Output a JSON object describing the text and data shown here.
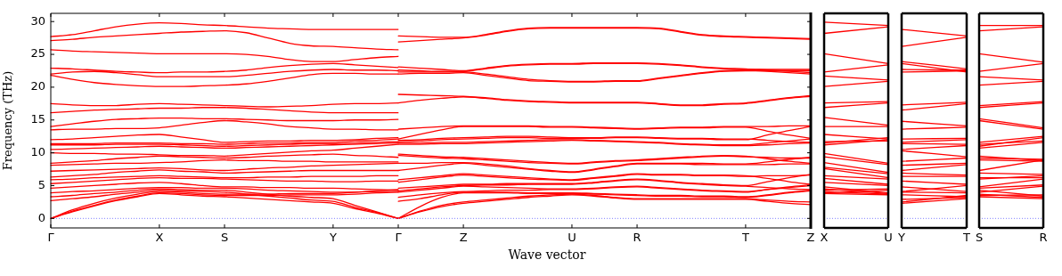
{
  "chart_data": [
    {
      "type": "line",
      "ylabel": "Frequency (THz)",
      "marker": "none",
      "line_style": "solid",
      "categories": [
        "Γ",
        null,
        null,
        null,
        null,
        "X",
        null,
        null,
        "S",
        null,
        null,
        null,
        null,
        "Y",
        null,
        null,
        "Γ"
      ],
      "ylim": [
        -1.45,
        31.25
      ],
      "yticks": [
        0,
        5,
        10,
        15,
        20,
        25,
        30
      ],
      "ref_lines": [
        {
          "axis": "y",
          "value": 0,
          "color": "#8080ff",
          "line_style": "dotted"
        }
      ],
      "series": [
        {
          "color": "#ff0000",
          "values": [
            0,
            1.0,
            1.9,
            2.7,
            3.3,
            3.8,
            3.6,
            3.4,
            3.3,
            3.1,
            2.9,
            2.7,
            2.5,
            2.3,
            1.5,
            0.8,
            0
          ]
        },
        {
          "color": "#ff0000",
          "values": [
            0,
            1.1,
            2.0,
            2.8,
            3.4,
            3.9,
            3.8,
            3.6,
            3.5,
            3.5,
            3.5,
            3.6,
            3.6,
            3.6,
            3.7,
            3.9,
            4.0
          ]
        },
        {
          "color": "#ff0000",
          "values": [
            0,
            1.3,
            2.3,
            3.1,
            3.7,
            4.1,
            4.0,
            3.8,
            3.7,
            3.7,
            3.7,
            3.8,
            3.8,
            3.8,
            4.0,
            4.2,
            4.4
          ]
        },
        {
          "color": "#ff0000",
          "values": [
            2.7,
            3.0,
            3.3,
            3.7,
            4.0,
            4.3,
            4.2,
            4.1,
            4.0,
            3.7,
            3.4,
            3.1,
            2.8,
            2.6,
            1.7,
            0.9,
            0
          ]
        },
        {
          "color": "#ff0000",
          "values": [
            3.3,
            3.5,
            3.8,
            4.0,
            4.3,
            4.5,
            4.4,
            4.3,
            4.3,
            4.0,
            3.7,
            3.4,
            3.2,
            3.0,
            2.0,
            1.0,
            0
          ]
        },
        {
          "color": "#ff0000",
          "values": [
            3.9,
            4.1,
            4.2,
            4.4,
            4.6,
            4.7,
            4.7,
            4.6,
            4.6,
            4.5,
            4.3,
            4.2,
            4.1,
            4.0,
            4.0,
            4.1,
            4.1
          ]
        },
        {
          "color": "#ff0000",
          "values": [
            4.6,
            4.8,
            5.0,
            5.2,
            5.4,
            5.5,
            5.3,
            5.0,
            4.8,
            4.8,
            4.7,
            4.7,
            4.6,
            4.6,
            4.5,
            4.4,
            4.3
          ]
        },
        {
          "color": "#ff0000",
          "values": [
            5.3,
            5.5,
            5.7,
            5.9,
            6.1,
            6.2,
            6.1,
            6.1,
            6.0,
            5.9,
            5.8,
            5.7,
            5.7,
            5.6,
            5.6,
            5.7,
            5.7
          ]
        },
        {
          "color": "#ff0000",
          "values": [
            5.9,
            6.0,
            6.2,
            6.3,
            6.4,
            6.5,
            6.4,
            6.3,
            6.2,
            6.2,
            6.3,
            6.3,
            6.4,
            6.4,
            6.4,
            6.5,
            6.5
          ]
        },
        {
          "color": "#ff0000",
          "values": [
            6.3,
            6.5,
            6.7,
            7.0,
            7.2,
            7.4,
            7.2,
            7.1,
            6.9,
            7.0,
            7.1,
            7.2,
            7.3,
            7.3,
            7.3,
            7.3,
            7.3
          ]
        },
        {
          "color": "#ff0000",
          "values": [
            7.2,
            7.3,
            7.4,
            7.5,
            7.6,
            7.7,
            7.6,
            7.4,
            7.3,
            7.5,
            7.7,
            7.8,
            8.0,
            8.1,
            8.2,
            8.3,
            8.4
          ]
        },
        {
          "color": "#ff0000",
          "values": [
            8.1,
            8.2,
            8.3,
            8.4,
            8.4,
            8.5,
            8.6,
            8.8,
            8.9,
            8.8,
            8.8,
            8.7,
            8.7,
            8.6,
            8.6,
            8.6,
            8.6
          ]
        },
        {
          "color": "#ff0000",
          "values": [
            8.4,
            8.6,
            8.8,
            9.1,
            9.3,
            9.5,
            9.4,
            9.3,
            9.2,
            9.3,
            9.5,
            9.6,
            9.7,
            9.8,
            9.6,
            9.5,
            9.3
          ]
        },
        {
          "color": "#ff0000",
          "values": [
            10.0,
            9.9,
            9.9,
            9.8,
            9.8,
            9.7,
            9.6,
            9.6,
            9.5,
            9.7,
            9.9,
            10.1,
            10.3,
            10.4,
            10.7,
            11.0,
            11.3
          ]
        },
        {
          "color": "#ff0000",
          "values": [
            10.5,
            10.6,
            10.7,
            10.8,
            10.9,
            11.0,
            10.9,
            10.8,
            10.7,
            10.8,
            10.9,
            11.0,
            11.1,
            11.2,
            11.3,
            11.4,
            11.5
          ]
        },
        {
          "color": "#ff0000",
          "values": [
            11.2,
            11.2,
            11.2,
            11.3,
            11.3,
            11.3,
            11.2,
            11.1,
            11.0,
            11.1,
            11.2,
            11.3,
            11.4,
            11.4,
            11.5,
            11.6,
            11.7
          ]
        },
        {
          "color": "#ff0000",
          "values": [
            11.4,
            11.4,
            11.4,
            11.5,
            11.5,
            11.5,
            11.4,
            11.4,
            11.3,
            11.4,
            11.5,
            11.5,
            11.6,
            11.6,
            11.8,
            11.9,
            12.1
          ]
        },
        {
          "color": "#ff0000",
          "values": [
            12.0,
            12.1,
            12.3,
            12.5,
            12.7,
            12.8,
            12.4,
            12.0,
            11.6,
            11.7,
            11.8,
            11.8,
            11.9,
            11.9,
            12.0,
            12.2,
            12.3
          ]
        },
        {
          "color": "#ff0000",
          "values": [
            13.5,
            13.6,
            13.6,
            13.7,
            13.7,
            13.8,
            14.2,
            14.6,
            14.9,
            14.7,
            14.4,
            14.0,
            13.8,
            13.6,
            13.6,
            13.5,
            13.5
          ]
        },
        {
          "color": "#ff0000",
          "values": [
            14.0,
            14.4,
            14.8,
            15.1,
            15.2,
            15.3,
            15.3,
            15.2,
            15.2,
            15.1,
            15.0,
            14.9,
            14.9,
            14.9,
            15.0,
            15.0,
            15.1
          ]
        },
        {
          "color": "#ff0000",
          "values": [
            16.1,
            16.3,
            16.5,
            16.6,
            16.7,
            16.8,
            16.8,
            16.9,
            16.9,
            16.8,
            16.6,
            16.4,
            16.2,
            16.1,
            16.1,
            16.1,
            16.1
          ]
        },
        {
          "color": "#ff0000",
          "values": [
            17.5,
            17.3,
            17.2,
            17.2,
            17.4,
            17.5,
            17.4,
            17.3,
            17.2,
            17.1,
            17.0,
            17.1,
            17.2,
            17.4,
            17.5,
            17.5,
            17.6
          ]
        },
        {
          "color": "#ff0000",
          "values": [
            21.8,
            21.2,
            20.7,
            20.4,
            20.2,
            20.1,
            20.1,
            20.2,
            20.3,
            20.5,
            20.9,
            21.4,
            21.9,
            22.1,
            22.1,
            22.0,
            22.0
          ]
        },
        {
          "color": "#ff0000",
          "values": [
            22.0,
            22.3,
            22.4,
            22.2,
            21.9,
            21.6,
            21.6,
            21.6,
            21.6,
            21.8,
            22.1,
            22.4,
            22.6,
            22.7,
            22.6,
            22.6,
            22.5
          ]
        },
        {
          "color": "#ff0000",
          "values": [
            22.9,
            22.8,
            22.6,
            22.4,
            22.3,
            22.2,
            22.3,
            22.3,
            22.4,
            22.6,
            23.0,
            23.3,
            23.5,
            23.6,
            23.4,
            23.2,
            23.0
          ]
        },
        {
          "color": "#ff0000",
          "values": [
            25.7,
            25.5,
            25.4,
            25.3,
            25.2,
            25.1,
            25.1,
            25.1,
            25.1,
            25.0,
            24.7,
            24.2,
            23.9,
            23.9,
            24.2,
            24.5,
            24.7
          ]
        },
        {
          "color": "#ff0000",
          "values": [
            27.1,
            27.3,
            27.6,
            27.8,
            28.0,
            28.2,
            28.4,
            28.5,
            28.6,
            28.3,
            27.5,
            26.7,
            26.3,
            26.2,
            26.0,
            25.8,
            25.7
          ]
        },
        {
          "color": "#ff0000",
          "values": [
            27.7,
            28.0,
            28.6,
            29.2,
            29.6,
            29.8,
            29.7,
            29.5,
            29.4,
            29.2,
            29.0,
            28.9,
            28.8,
            28.8,
            28.8,
            28.8,
            28.8
          ]
        }
      ]
    },
    {
      "type": "line",
      "xlabel": "Wave vector",
      "marker": "none",
      "line_style": "solid",
      "tick_labels": "x",
      "categories": [
        null,
        null,
        null,
        "Z",
        null,
        null,
        null,
        null,
        "U",
        null,
        null,
        "R",
        null,
        null,
        null,
        null,
        "T",
        null,
        null,
        "Z"
      ],
      "ylim": [
        -1.45,
        31.25
      ],
      "yticks": [
        {
          "value": 0,
          "label": null
        },
        {
          "value": 5,
          "label": null
        },
        {
          "value": 10,
          "label": null
        },
        {
          "value": 15,
          "label": null
        },
        {
          "value": 20,
          "label": null
        },
        {
          "value": 25,
          "label": null
        },
        {
          "value": 30,
          "label": null
        }
      ],
      "ref_lines": [
        {
          "axis": "y",
          "value": 0,
          "color": "#8080ff",
          "line_style": "dotted"
        }
      ],
      "series": [
        {
          "color": "#ff0000",
          "values": [
            0,
            1.0,
            1.8,
            2.3,
            2.6,
            2.9,
            3.2,
            3.4,
            3.6,
            3.4,
            3.1,
            2.9,
            2.9,
            2.9,
            2.9,
            2.9,
            2.9,
            2.6,
            2.3,
            2.1
          ]
        },
        {
          "color": "#ff0000",
          "values": [
            0,
            1.1,
            2.0,
            2.5,
            2.8,
            3.1,
            3.4,
            3.6,
            3.7,
            3.5,
            3.2,
            3.0,
            3.0,
            3.0,
            3.0,
            3.0,
            3.0,
            2.8,
            2.6,
            2.5
          ]
        },
        {
          "color": "#ff0000",
          "values": [
            0,
            1.8,
            3.2,
            3.9,
            3.9,
            3.9,
            3.8,
            3.8,
            3.8,
            3.7,
            3.6,
            3.5,
            3.4,
            3.4,
            3.3,
            3.3,
            3.2,
            3.5,
            3.9,
            4.2
          ]
        },
        {
          "color": "#ff0000",
          "values": [
            2.6,
            3.0,
            3.6,
            4.0,
            4.0,
            4.0,
            3.9,
            3.9,
            3.9,
            3.8,
            3.7,
            3.6,
            3.5,
            3.5,
            3.4,
            3.4,
            3.3,
            3.6,
            4.0,
            4.3
          ]
        },
        {
          "color": "#ff0000",
          "values": [
            3.2,
            3.6,
            3.9,
            4.1,
            4.2,
            4.3,
            4.3,
            4.4,
            4.4,
            4.5,
            4.7,
            4.8,
            4.6,
            4.4,
            4.2,
            4.1,
            4.0,
            4.4,
            4.8,
            5.1
          ]
        },
        {
          "color": "#ff0000",
          "values": [
            4.0,
            4.3,
            4.6,
            4.9,
            4.8,
            4.7,
            4.6,
            4.5,
            4.5,
            4.6,
            4.8,
            4.9,
            4.7,
            4.5,
            4.3,
            4.2,
            4.1,
            4.4,
            4.7,
            5.0
          ]
        },
        {
          "color": "#ff0000",
          "values": [
            4.2,
            4.5,
            4.8,
            5.0,
            5.1,
            5.1,
            5.2,
            5.2,
            5.2,
            5.4,
            5.7,
            5.9,
            5.7,
            5.4,
            5.2,
            5.0,
            4.9,
            4.7,
            4.5,
            4.4
          ]
        },
        {
          "color": "#ff0000",
          "values": [
            4.6,
            4.8,
            5.0,
            5.2,
            5.2,
            5.3,
            5.3,
            5.3,
            5.3,
            5.5,
            5.8,
            6.0,
            5.8,
            5.5,
            5.3,
            5.1,
            5.0,
            5.6,
            6.2,
            6.7
          ]
        },
        {
          "color": "#ff0000",
          "values": [
            5.5,
            5.9,
            6.3,
            6.6,
            6.4,
            6.2,
            6.0,
            5.9,
            5.8,
            6.1,
            6.4,
            6.7,
            6.6,
            6.6,
            6.5,
            6.5,
            6.4,
            6.5,
            6.5,
            6.6
          ]
        },
        {
          "color": "#ff0000",
          "values": [
            5.9,
            6.2,
            6.5,
            6.8,
            6.6,
            6.4,
            6.2,
            6.0,
            5.9,
            6.2,
            6.5,
            6.8,
            6.7,
            6.7,
            6.6,
            6.6,
            6.5,
            6.1,
            5.6,
            5.2
          ]
        },
        {
          "color": "#ff0000",
          "values": [
            7.3,
            7.7,
            8.1,
            8.4,
            8.1,
            7.8,
            7.5,
            7.2,
            7.0,
            7.4,
            7.9,
            8.3,
            8.3,
            8.3,
            8.2,
            8.2,
            8.2,
            8.2,
            8.3,
            8.3
          ]
        },
        {
          "color": "#ff0000",
          "values": [
            8.4,
            8.4,
            8.5,
            8.5,
            8.3,
            8.0,
            7.6,
            7.3,
            7.1,
            7.5,
            8.0,
            8.4,
            8.4,
            8.4,
            8.4,
            8.3,
            8.3,
            8.6,
            9.0,
            9.3
          ]
        },
        {
          "color": "#ff0000",
          "values": [
            9.6,
            9.4,
            9.2,
            9.1,
            8.9,
            8.7,
            8.5,
            8.4,
            8.3,
            8.5,
            8.7,
            8.8,
            9.0,
            9.2,
            9.4,
            9.5,
            9.4,
            9.3,
            9.2,
            9.2
          ]
        },
        {
          "color": "#ff0000",
          "values": [
            9.8,
            9.6,
            9.4,
            9.3,
            9.1,
            8.9,
            8.7,
            8.5,
            8.4,
            8.6,
            8.8,
            8.9,
            9.1,
            9.3,
            9.5,
            9.6,
            9.5,
            9.1,
            8.7,
            8.4
          ]
        },
        {
          "color": "#ff0000",
          "values": [
            11.3,
            11.3,
            11.4,
            11.4,
            11.5,
            11.6,
            11.7,
            11.8,
            11.9,
            11.8,
            11.7,
            11.6,
            11.5,
            11.3,
            11.2,
            11.1,
            11.1,
            11.2,
            11.4,
            11.5
          ]
        },
        {
          "color": "#ff0000",
          "values": [
            11.5,
            11.5,
            11.6,
            11.6,
            11.7,
            11.8,
            11.9,
            12.0,
            12.0,
            11.9,
            11.8,
            11.7,
            11.6,
            11.4,
            11.3,
            11.2,
            11.2,
            11.5,
            11.8,
            12.1
          ]
        },
        {
          "color": "#ff0000",
          "values": [
            11.7,
            11.8,
            12.0,
            12.1,
            12.2,
            12.3,
            12.3,
            12.2,
            12.2,
            12.2,
            12.3,
            12.3,
            12.2,
            12.1,
            12.1,
            12.0,
            12.0,
            12.7,
            13.4,
            14.0
          ]
        },
        {
          "color": "#ff0000",
          "values": [
            11.9,
            12.0,
            12.2,
            12.3,
            12.4,
            12.5,
            12.5,
            12.4,
            12.3,
            12.3,
            12.4,
            12.4,
            12.3,
            12.2,
            12.2,
            12.1,
            12.1,
            11.9,
            11.7,
            11.6
          ]
        },
        {
          "color": "#ff0000",
          "values": [
            12.1,
            12.8,
            13.5,
            14.0,
            14.0,
            14.0,
            14.0,
            13.9,
            13.9,
            13.8,
            13.7,
            13.6,
            13.7,
            13.8,
            13.8,
            13.9,
            13.9,
            13.3,
            12.7,
            12.2
          ]
        },
        {
          "color": "#ff0000",
          "values": [
            13.6,
            13.8,
            14.0,
            14.1,
            14.1,
            14.1,
            14.1,
            14.0,
            14.0,
            13.9,
            13.8,
            13.7,
            13.8,
            13.9,
            13.9,
            14.0,
            14.0,
            14.0,
            14.1,
            14.1
          ]
        },
        {
          "color": "#ff0000",
          "values": [
            17.6,
            18.0,
            18.3,
            18.5,
            18.3,
            18.0,
            17.8,
            17.7,
            17.6,
            17.6,
            17.6,
            17.6,
            17.4,
            17.2,
            17.2,
            17.4,
            17.5,
            17.9,
            18.3,
            18.6
          ]
        },
        {
          "color": "#ff0000",
          "values": [
            18.9,
            18.8,
            18.7,
            18.6,
            18.4,
            18.1,
            17.9,
            17.8,
            17.7,
            17.7,
            17.7,
            17.7,
            17.5,
            17.3,
            17.3,
            17.5,
            17.6,
            18.0,
            18.4,
            18.7
          ]
        },
        {
          "color": "#ff0000",
          "values": [
            22.0,
            22.1,
            22.1,
            22.2,
            21.8,
            21.4,
            21.0,
            20.9,
            20.8,
            20.8,
            20.9,
            20.9,
            21.3,
            21.7,
            22.1,
            22.4,
            22.5,
            22.5,
            22.5,
            22.5
          ]
        },
        {
          "color": "#ff0000",
          "values": [
            22.3,
            22.3,
            22.3,
            22.3,
            22.0,
            21.6,
            21.2,
            21.0,
            20.9,
            20.9,
            21.0,
            21.0,
            21.4,
            21.8,
            22.2,
            22.5,
            22.6,
            22.4,
            22.2,
            22.0
          ]
        },
        {
          "color": "#ff0000",
          "values": [
            22.6,
            22.5,
            22.4,
            22.4,
            22.8,
            23.2,
            23.4,
            23.5,
            23.5,
            23.6,
            23.6,
            23.6,
            23.5,
            23.3,
            23.0,
            22.8,
            22.7,
            22.7,
            22.7,
            22.7
          ]
        },
        {
          "color": "#ff0000",
          "values": [
            23.1,
            22.9,
            22.7,
            22.5,
            22.9,
            23.3,
            23.5,
            23.6,
            23.6,
            23.7,
            23.7,
            23.7,
            23.6,
            23.4,
            23.1,
            22.9,
            22.8,
            22.6,
            22.4,
            22.2
          ]
        },
        {
          "color": "#ff0000",
          "values": [
            26.9,
            27.1,
            27.3,
            27.5,
            27.9,
            28.5,
            28.9,
            29.0,
            29.0,
            29.0,
            29.0,
            29.0,
            28.9,
            28.4,
            27.9,
            27.7,
            27.6,
            27.5,
            27.4,
            27.3
          ]
        },
        {
          "color": "#ff0000",
          "values": [
            27.8,
            27.7,
            27.6,
            27.6,
            28.0,
            28.6,
            29.0,
            29.1,
            29.1,
            29.1,
            29.1,
            29.1,
            29.0,
            28.5,
            28.0,
            27.8,
            27.7,
            27.6,
            27.5,
            27.4
          ]
        }
      ]
    },
    {
      "type": "line",
      "marker": "none",
      "line_style": "solid",
      "tick_labels": "x",
      "categories": [
        "X",
        "U"
      ],
      "ylim": [
        -1.45,
        31.25
      ],
      "ref_lines": [
        {
          "axis": "y",
          "value": 0,
          "color": "#8080ff",
          "line_style": "dotted"
        }
      ],
      "series": [
        {
          "color": "#ff0000",
          "values": [
            3.8,
            3.6
          ]
        },
        {
          "color": "#ff0000",
          "values": [
            3.9,
            4.3
          ]
        },
        {
          "color": "#ff0000",
          "values": [
            4.1,
            3.7
          ]
        },
        {
          "color": "#ff0000",
          "values": [
            4.3,
            4.5
          ]
        },
        {
          "color": "#ff0000",
          "values": [
            4.5,
            3.8
          ]
        },
        {
          "color": "#ff0000",
          "values": [
            4.8,
            3.9
          ]
        },
        {
          "color": "#ff0000",
          "values": [
            5.5,
            5.0
          ]
        },
        {
          "color": "#ff0000",
          "values": [
            6.1,
            5.2
          ]
        },
        {
          "color": "#ff0000",
          "values": [
            6.5,
            6.0
          ]
        },
        {
          "color": "#ff0000",
          "values": [
            7.6,
            6.2
          ]
        },
        {
          "color": "#ff0000",
          "values": [
            7.8,
            6.8
          ]
        },
        {
          "color": "#ff0000",
          "values": [
            8.5,
            7.0
          ]
        },
        {
          "color": "#ff0000",
          "values": [
            9.4,
            8.2
          ]
        },
        {
          "color": "#ff0000",
          "values": [
            9.9,
            8.4
          ]
        },
        {
          "color": "#ff0000",
          "values": [
            11.2,
            12.0
          ]
        },
        {
          "color": "#ff0000",
          "values": [
            11.5,
            12.3
          ]
        },
        {
          "color": "#ff0000",
          "values": [
            11.7,
            11.8
          ]
        },
        {
          "color": "#ff0000",
          "values": [
            12.8,
            12.1
          ]
        },
        {
          "color": "#ff0000",
          "values": [
            14.0,
            14.0
          ]
        },
        {
          "color": "#ff0000",
          "values": [
            15.4,
            14.2
          ]
        },
        {
          "color": "#ff0000",
          "values": [
            16.9,
            17.6
          ]
        },
        {
          "color": "#ff0000",
          "values": [
            17.6,
            17.8
          ]
        },
        {
          "color": "#ff0000",
          "values": [
            20.1,
            20.9
          ]
        },
        {
          "color": "#ff0000",
          "values": [
            21.7,
            21.1
          ]
        },
        {
          "color": "#ff0000",
          "values": [
            22.3,
            23.4
          ]
        },
        {
          "color": "#ff0000",
          "values": [
            25.1,
            23.6
          ]
        },
        {
          "color": "#ff0000",
          "values": [
            28.2,
            29.2
          ]
        },
        {
          "color": "#ff0000",
          "values": [
            29.9,
            29.4
          ]
        }
      ]
    },
    {
      "type": "line",
      "marker": "none",
      "line_style": "solid",
      "tick_labels": "x",
      "categories": [
        "Y",
        "T"
      ],
      "ylim": [
        -1.45,
        31.25
      ],
      "ref_lines": [
        {
          "axis": "y",
          "value": 0,
          "color": "#8080ff",
          "line_style": "dotted"
        }
      ],
      "series": [
        {
          "color": "#ff0000",
          "values": [
            2.3,
            3.0
          ]
        },
        {
          "color": "#ff0000",
          "values": [
            2.5,
            3.5
          ]
        },
        {
          "color": "#ff0000",
          "values": [
            2.9,
            3.2
          ]
        },
        {
          "color": "#ff0000",
          "values": [
            3.6,
            3.3
          ]
        },
        {
          "color": "#ff0000",
          "values": [
            4.0,
            3.9
          ]
        },
        {
          "color": "#ff0000",
          "values": [
            4.1,
            5.0
          ]
        },
        {
          "color": "#ff0000",
          "values": [
            4.8,
            4.1
          ]
        },
        {
          "color": "#ff0000",
          "values": [
            5.7,
            5.2
          ]
        },
        {
          "color": "#ff0000",
          "values": [
            6.4,
            6.4
          ]
        },
        {
          "color": "#ff0000",
          "values": [
            6.9,
            6.6
          ]
        },
        {
          "color": "#ff0000",
          "values": [
            7.3,
            8.2
          ]
        },
        {
          "color": "#ff0000",
          "values": [
            8.1,
            8.4
          ]
        },
        {
          "color": "#ff0000",
          "values": [
            8.7,
            9.2
          ]
        },
        {
          "color": "#ff0000",
          "values": [
            10.3,
            9.4
          ]
        },
        {
          "color": "#ff0000",
          "values": [
            10.5,
            11.1
          ]
        },
        {
          "color": "#ff0000",
          "values": [
            11.4,
            11.3
          ]
        },
        {
          "color": "#ff0000",
          "values": [
            11.6,
            12.0
          ]
        },
        {
          "color": "#ff0000",
          "values": [
            12.1,
            12.2
          ]
        },
        {
          "color": "#ff0000",
          "values": [
            13.6,
            13.9
          ]
        },
        {
          "color": "#ff0000",
          "values": [
            14.8,
            14.1
          ]
        },
        {
          "color": "#ff0000",
          "values": [
            16.5,
            17.5
          ]
        },
        {
          "color": "#ff0000",
          "values": [
            17.3,
            17.7
          ]
        },
        {
          "color": "#ff0000",
          "values": [
            22.3,
            22.5
          ]
        },
        {
          "color": "#ff0000",
          "values": [
            22.7,
            22.6
          ]
        },
        {
          "color": "#ff0000",
          "values": [
            23.6,
            22.3
          ]
        },
        {
          "color": "#ff0000",
          "values": [
            23.9,
            22.8
          ]
        },
        {
          "color": "#ff0000",
          "values": [
            26.2,
            27.6
          ]
        },
        {
          "color": "#ff0000",
          "values": [
            28.8,
            27.8
          ]
        }
      ]
    },
    {
      "type": "line",
      "marker": "none",
      "line_style": "solid",
      "tick_labels": "x",
      "categories": [
        "S",
        "R"
      ],
      "ylim": [
        -1.45,
        31.25
      ],
      "ref_lines": [
        {
          "axis": "y",
          "value": 0,
          "color": "#8080ff",
          "line_style": "dotted"
        }
      ],
      "series": [
        {
          "color": "#ff0000",
          "values": [
            3.3,
            3.0
          ]
        },
        {
          "color": "#ff0000",
          "values": [
            3.5,
            3.6
          ]
        },
        {
          "color": "#ff0000",
          "values": [
            3.7,
            3.2
          ]
        },
        {
          "color": "#ff0000",
          "values": [
            4.0,
            4.9
          ]
        },
        {
          "color": "#ff0000",
          "values": [
            4.3,
            3.4
          ]
        },
        {
          "color": "#ff0000",
          "values": [
            4.6,
            5.1
          ]
        },
        {
          "color": "#ff0000",
          "values": [
            4.8,
            6.0
          ]
        },
        {
          "color": "#ff0000",
          "values": [
            6.0,
            6.5
          ]
        },
        {
          "color": "#ff0000",
          "values": [
            6.2,
            6.2
          ]
        },
        {
          "color": "#ff0000",
          "values": [
            6.9,
            6.7
          ]
        },
        {
          "color": "#ff0000",
          "values": [
            7.3,
            8.9
          ]
        },
        {
          "color": "#ff0000",
          "values": [
            8.9,
            8.7
          ]
        },
        {
          "color": "#ff0000",
          "values": [
            9.2,
            9.0
          ]
        },
        {
          "color": "#ff0000",
          "values": [
            9.5,
            8.8
          ]
        },
        {
          "color": "#ff0000",
          "values": [
            10.7,
            11.6
          ]
        },
        {
          "color": "#ff0000",
          "values": [
            11.0,
            12.3
          ]
        },
        {
          "color": "#ff0000",
          "values": [
            11.3,
            11.8
          ]
        },
        {
          "color": "#ff0000",
          "values": [
            11.6,
            12.5
          ]
        },
        {
          "color": "#ff0000",
          "values": [
            14.9,
            13.6
          ]
        },
        {
          "color": "#ff0000",
          "values": [
            15.2,
            13.8
          ]
        },
        {
          "color": "#ff0000",
          "values": [
            16.9,
            17.6
          ]
        },
        {
          "color": "#ff0000",
          "values": [
            17.2,
            17.8
          ]
        },
        {
          "color": "#ff0000",
          "values": [
            20.3,
            20.9
          ]
        },
        {
          "color": "#ff0000",
          "values": [
            21.6,
            21.1
          ]
        },
        {
          "color": "#ff0000",
          "values": [
            22.4,
            23.6
          ]
        },
        {
          "color": "#ff0000",
          "values": [
            25.1,
            23.8
          ]
        },
        {
          "color": "#ff0000",
          "values": [
            28.6,
            29.2
          ]
        },
        {
          "color": "#ff0000",
          "values": [
            29.4,
            29.4
          ]
        }
      ]
    }
  ]
}
